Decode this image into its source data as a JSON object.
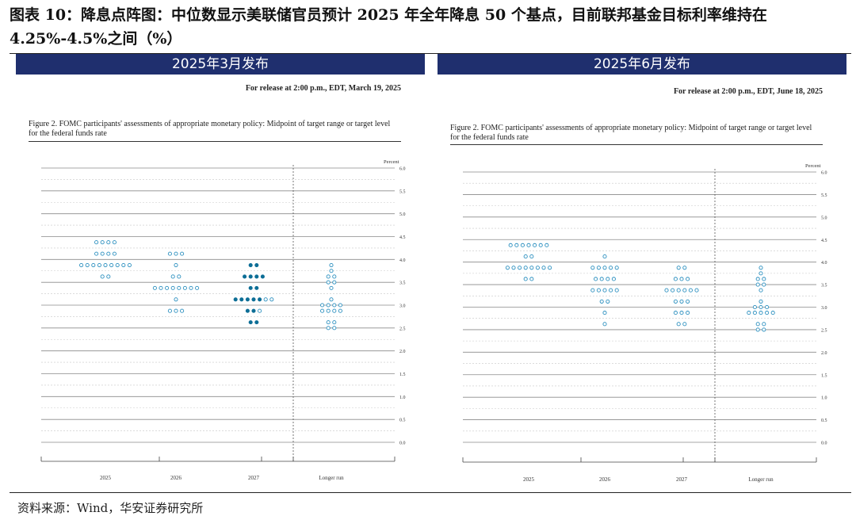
{
  "title": "图表 10：降息点阵图：中位数显示美联储官员预计 2025 年全年降息 50 个基点，目前联邦基金目标利率维持在 4.25%-4.5%之间（%）",
  "footer": "资料来源：Wind，华安证券研究所",
  "colors": {
    "banner": "#1f2f6e",
    "dot": "#2a8fbf",
    "dot_highlight": "#0d6e96"
  },
  "panels": [
    {
      "banner": "2025年3月发布",
      "release": "For release at 2:00 p.m., EDT, March 19, 2025",
      "figure_caption": "Figure 2.  FOMC participants' assessments of appropriate monetary policy: Midpoint of target range or target level for the federal funds rate",
      "percent_label": "Percent"
    },
    {
      "banner": "2025年6月发布",
      "release": "For release at 2:00 p.m., EDT, June 18, 2025",
      "figure_caption": "Figure 2.  FOMC participants' assessments of appropriate monetary policy: Midpoint of target range or target level for the federal funds rate",
      "percent_label": "Percent"
    }
  ],
  "chart_data": [
    {
      "type": "scatter",
      "title": "2025年3月发布",
      "ylabel": "Percent",
      "ylim": [
        0,
        6.0
      ],
      "yticks": [
        "0.0",
        "0.5",
        "1.0",
        "1.5",
        "2.0",
        "2.5",
        "3.0",
        "3.5",
        "4.0",
        "4.5",
        "5.0",
        "5.5",
        "6.0"
      ],
      "categories": [
        "2025",
        "2026",
        "2027",
        "Longer run"
      ],
      "series": [
        {
          "dots": [
            {
              "x": "2025",
              "y": 4.375,
              "count": 4
            },
            {
              "x": "2025",
              "y": 4.125,
              "count": 4
            },
            {
              "x": "2025",
              "y": 3.875,
              "count": 9
            },
            {
              "x": "2025",
              "y": 3.625,
              "count": 2
            },
            {
              "x": "2026",
              "y": 4.125,
              "count": 3
            },
            {
              "x": "2026",
              "y": 3.875,
              "count": 1
            },
            {
              "x": "2026",
              "y": 3.625,
              "count": 2
            },
            {
              "x": "2026",
              "y": 3.375,
              "count": 8
            },
            {
              "x": "2026",
              "y": 3.125,
              "count": 1
            },
            {
              "x": "2026",
              "y": 2.875,
              "count": 3
            },
            {
              "x": "2027",
              "y": 3.875,
              "count": 2,
              "filled": true
            },
            {
              "x": "2027",
              "y": 3.625,
              "count": 4,
              "filled": true
            },
            {
              "x": "2027",
              "y": 3.375,
              "count": 2,
              "filled": true
            },
            {
              "x": "2027",
              "y": 3.125,
              "count": 5,
              "filled": true
            },
            {
              "x": "2027",
              "y": 3.125,
              "count": 2
            },
            {
              "x": "2027",
              "y": 2.875,
              "count": 2,
              "filled": true
            },
            {
              "x": "2027",
              "y": 2.875,
              "count": 1
            },
            {
              "x": "2027",
              "y": 2.625,
              "count": 2,
              "filled": true
            },
            {
              "x": "Longer run",
              "y": 3.875,
              "count": 1
            },
            {
              "x": "Longer run",
              "y": 3.75,
              "count": 1
            },
            {
              "x": "Longer run",
              "y": 3.625,
              "count": 2
            },
            {
              "x": "Longer run",
              "y": 3.5,
              "count": 2
            },
            {
              "x": "Longer run",
              "y": 3.375,
              "count": 1
            },
            {
              "x": "Longer run",
              "y": 3.125,
              "count": 1
            },
            {
              "x": "Longer run",
              "y": 3.0,
              "count": 4
            },
            {
              "x": "Longer run",
              "y": 2.875,
              "count": 4
            },
            {
              "x": "Longer run",
              "y": 2.625,
              "count": 2
            },
            {
              "x": "Longer run",
              "y": 2.5,
              "count": 2
            }
          ]
        }
      ]
    },
    {
      "type": "scatter",
      "title": "2025年6月发布",
      "ylabel": "Percent",
      "ylim": [
        0,
        6.0
      ],
      "yticks": [
        "0.0",
        "0.5",
        "1.0",
        "1.5",
        "2.0",
        "2.5",
        "3.0",
        "3.5",
        "4.0",
        "4.5",
        "5.0",
        "5.5",
        "6.0"
      ],
      "categories": [
        "2025",
        "2026",
        "2027",
        "Longer run"
      ],
      "series": [
        {
          "dots": [
            {
              "x": "2025",
              "y": 4.375,
              "count": 7
            },
            {
              "x": "2025",
              "y": 4.125,
              "count": 2
            },
            {
              "x": "2025",
              "y": 3.875,
              "count": 8
            },
            {
              "x": "2025",
              "y": 3.625,
              "count": 2
            },
            {
              "x": "2026",
              "y": 4.125,
              "count": 1
            },
            {
              "x": "2026",
              "y": 3.875,
              "count": 5
            },
            {
              "x": "2026",
              "y": 3.625,
              "count": 4
            },
            {
              "x": "2026",
              "y": 3.375,
              "count": 5
            },
            {
              "x": "2026",
              "y": 3.125,
              "count": 2
            },
            {
              "x": "2026",
              "y": 2.875,
              "count": 1
            },
            {
              "x": "2026",
              "y": 2.625,
              "count": 1
            },
            {
              "x": "2027",
              "y": 3.875,
              "count": 2
            },
            {
              "x": "2027",
              "y": 3.625,
              "count": 3
            },
            {
              "x": "2027",
              "y": 3.375,
              "count": 6
            },
            {
              "x": "2027",
              "y": 3.125,
              "count": 3
            },
            {
              "x": "2027",
              "y": 2.875,
              "count": 3
            },
            {
              "x": "2027",
              "y": 2.625,
              "count": 2
            },
            {
              "x": "Longer run",
              "y": 3.875,
              "count": 1
            },
            {
              "x": "Longer run",
              "y": 3.75,
              "count": 1
            },
            {
              "x": "Longer run",
              "y": 3.625,
              "count": 2
            },
            {
              "x": "Longer run",
              "y": 3.5,
              "count": 2
            },
            {
              "x": "Longer run",
              "y": 3.375,
              "count": 1
            },
            {
              "x": "Longer run",
              "y": 3.125,
              "count": 1
            },
            {
              "x": "Longer run",
              "y": 3.0,
              "count": 3
            },
            {
              "x": "Longer run",
              "y": 2.875,
              "count": 5
            },
            {
              "x": "Longer run",
              "y": 2.625,
              "count": 2
            },
            {
              "x": "Longer run",
              "y": 2.5,
              "count": 2
            }
          ]
        }
      ]
    }
  ]
}
